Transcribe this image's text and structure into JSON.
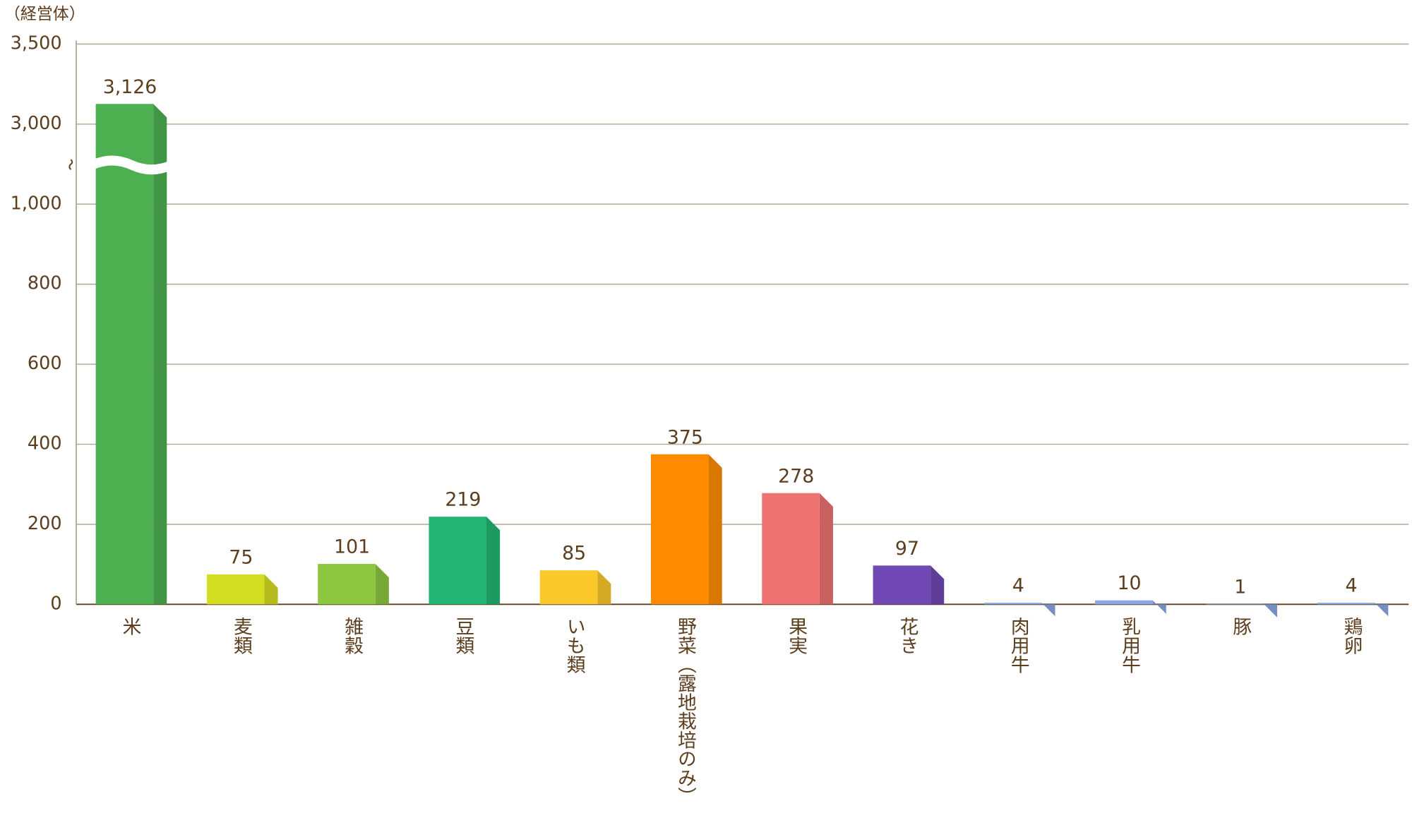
{
  "chart_data": {
    "type": "bar",
    "y_label": "（経営体）",
    "categories": [
      "米",
      "麦類",
      "雑穀",
      "豆類",
      "いも類",
      "野菜（露地栽培のみ）",
      "果実",
      "花き",
      "肉用牛",
      "乳用牛",
      "豚",
      "鶏卵"
    ],
    "values": [
      3126,
      75,
      101,
      219,
      85,
      375,
      278,
      97,
      4,
      10,
      1,
      4
    ],
    "value_labels": [
      "3,126",
      "75",
      "101",
      "219",
      "85",
      "375",
      "278",
      "97",
      "4",
      "10",
      "1",
      "4"
    ],
    "colors": [
      "#4caf50",
      "#d4de22",
      "#8dc63f",
      "#22b573",
      "#fbc82c",
      "#ff8c00",
      "#ee7272",
      "#7049b5",
      "#8aa8e8",
      "#8aa8e8",
      "#8aa8e8",
      "#8aa8e8"
    ],
    "ylim": [
      0,
      3500
    ],
    "yticks": [
      0,
      200,
      400,
      600,
      800,
      {
        "value": 1000,
        "label": "1,000"
      },
      {
        "value": 3000,
        "label": "3,000"
      },
      {
        "value": 3500,
        "label": "3,500"
      }
    ],
    "grid": true
  }
}
